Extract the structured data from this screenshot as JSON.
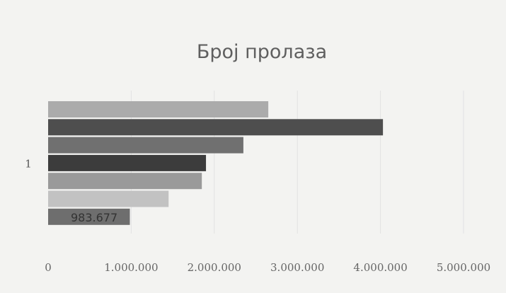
{
  "chart_data": {
    "type": "bar",
    "orientation": "horizontal",
    "title": "Број пролаза",
    "categories": [
      "1"
    ],
    "series": [
      {
        "values": [
          2650000
        ],
        "color": "#ababab"
      },
      {
        "values": [
          4030000
        ],
        "color": "#4e4e4e"
      },
      {
        "values": [
          2350000
        ],
        "color": "#707070"
      },
      {
        "values": [
          1900000
        ],
        "color": "#3c3c3c"
      },
      {
        "values": [
          1850000
        ],
        "color": "#9a9a9a"
      },
      {
        "values": [
          1450000
        ],
        "color": "#c2c2c2"
      },
      {
        "values": [
          983677
        ],
        "color": "#6e6e6e",
        "data_label": "983.677"
      }
    ],
    "x_ticks": [
      "0",
      "1.000.000",
      "2.000.000",
      "3.000.000",
      "4.000.000",
      "5.000.000"
    ],
    "xlim": [
      0,
      5000000
    ],
    "grid": true,
    "legend": "none"
  }
}
